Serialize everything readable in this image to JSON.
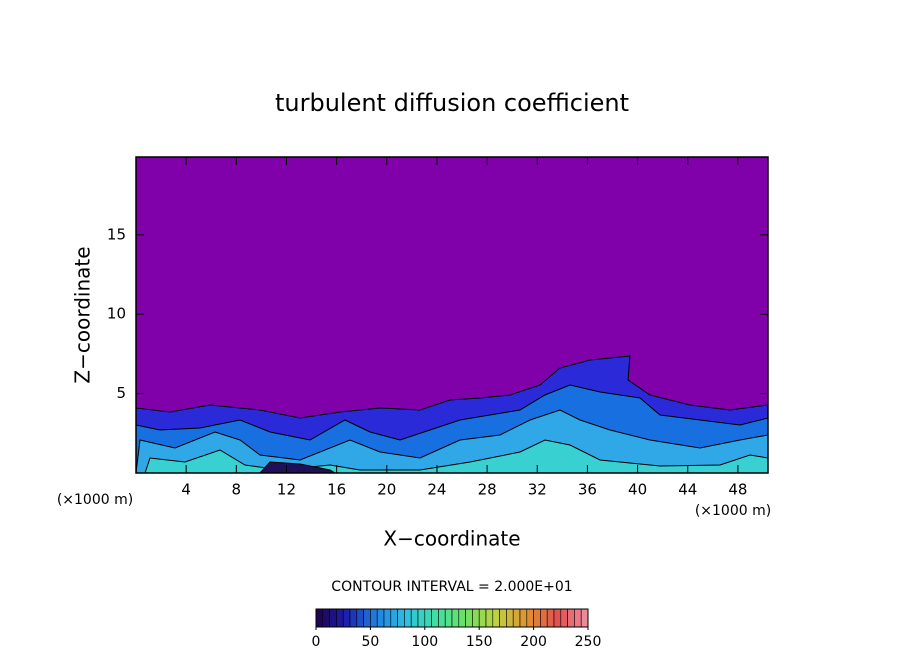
{
  "chart_data": {
    "type": "contour",
    "title": "turbulent diffusion coefficient",
    "xlabel": "X−coordinate",
    "ylabel": "Z−coordinate",
    "x_unit_label": "(×1000 m)",
    "y_unit_label": "(×1000 m)",
    "contour_interval_label": "CONTOUR INTERVAL = 2.000E+01",
    "xlim": [
      0,
      50.4
    ],
    "xticks": [
      4,
      8,
      12,
      16,
      20,
      24,
      28,
      32,
      36,
      40,
      44,
      48
    ],
    "ylim": [
      0,
      19.9
    ],
    "yticks": [
      5,
      10,
      15
    ],
    "background_color": "#8000aa",
    "colorbar": {
      "lim": [
        0,
        250
      ],
      "ticks": [
        0,
        50,
        100,
        150,
        200,
        250
      ],
      "colors": [
        "#20004a",
        "#1c20b0",
        "#2080e0",
        "#30c0e0",
        "#40e0a0",
        "#70e060",
        "#c0d040",
        "#e09030",
        "#e05050",
        "#f090a0"
      ]
    }
  }
}
